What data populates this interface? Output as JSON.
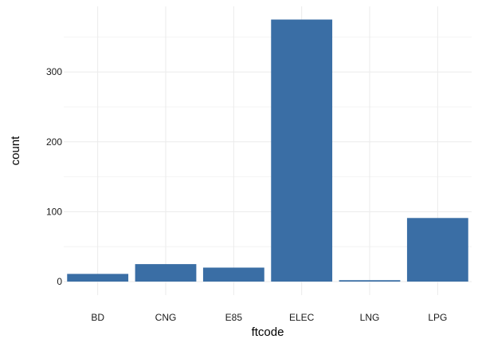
{
  "chart_data": {
    "type": "bar",
    "title": "",
    "xlabel": "ftcode",
    "ylabel": "count",
    "categories": [
      "BD",
      "CNG",
      "E85",
      "ELEC",
      "LNG",
      "LPG"
    ],
    "values": [
      11,
      25,
      20,
      375,
      2,
      91
    ],
    "ylim": [
      0,
      390
    ],
    "yticks": [
      0,
      100,
      200,
      300
    ],
    "grid": true,
    "legend": "none",
    "bar_color": "#3a6ea5",
    "grid_color": "#ebebeb"
  }
}
